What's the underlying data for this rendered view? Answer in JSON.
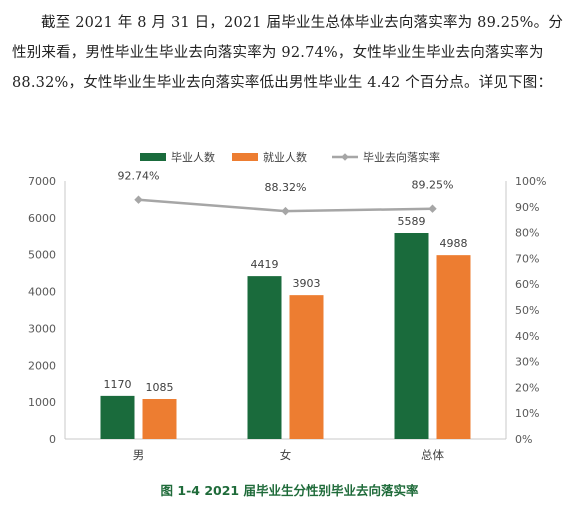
{
  "paragraph": "截至 2021 年 8 月 31 日，2021 届毕业生总体毕业去向落实率为 89.25%。分性别来看，男性毕业生毕业去向落实率为 92.74%，女性毕业生毕业去向落实率为 88.32%，女性毕业生毕业去向落实率低出男性毕业生 4.42 个百分点。详见下图：",
  "caption": "图 1-4 2021 届毕业生分性别毕业去向落实率",
  "chart_data": {
    "type": "bar",
    "title": "",
    "categories": [
      "男",
      "女",
      "总体"
    ],
    "series": [
      {
        "name": "毕业人数",
        "kind": "bar",
        "axis": "left",
        "color": "#1a6b3c",
        "values": [
          1170,
          4419,
          5589
        ],
        "labels": [
          "1170",
          "4419",
          "5589"
        ]
      },
      {
        "name": "就业人数",
        "kind": "bar",
        "axis": "left",
        "color": "#ed7d31",
        "values": [
          1085,
          3903,
          4988
        ],
        "labels": [
          "1085",
          "3903",
          "4988"
        ]
      },
      {
        "name": "毕业去向落实率",
        "kind": "line",
        "axis": "right",
        "color": "#a6a6a6",
        "values": [
          92.74,
          88.32,
          89.25
        ],
        "labels": [
          "92.74%",
          "88.32%",
          "89.25%"
        ]
      }
    ],
    "y_left": {
      "min": 0,
      "max": 7000,
      "ticks": [
        "0",
        "1000",
        "2000",
        "3000",
        "4000",
        "5000",
        "6000",
        "7000"
      ]
    },
    "y_right": {
      "min": 0,
      "max": 100,
      "ticks": [
        "0%",
        "10%",
        "20%",
        "30%",
        "40%",
        "50%",
        "60%",
        "70%",
        "80%",
        "90%",
        "100%"
      ]
    },
    "xlabel": "",
    "ylabel": "",
    "legend_position": "top",
    "grid": false
  }
}
